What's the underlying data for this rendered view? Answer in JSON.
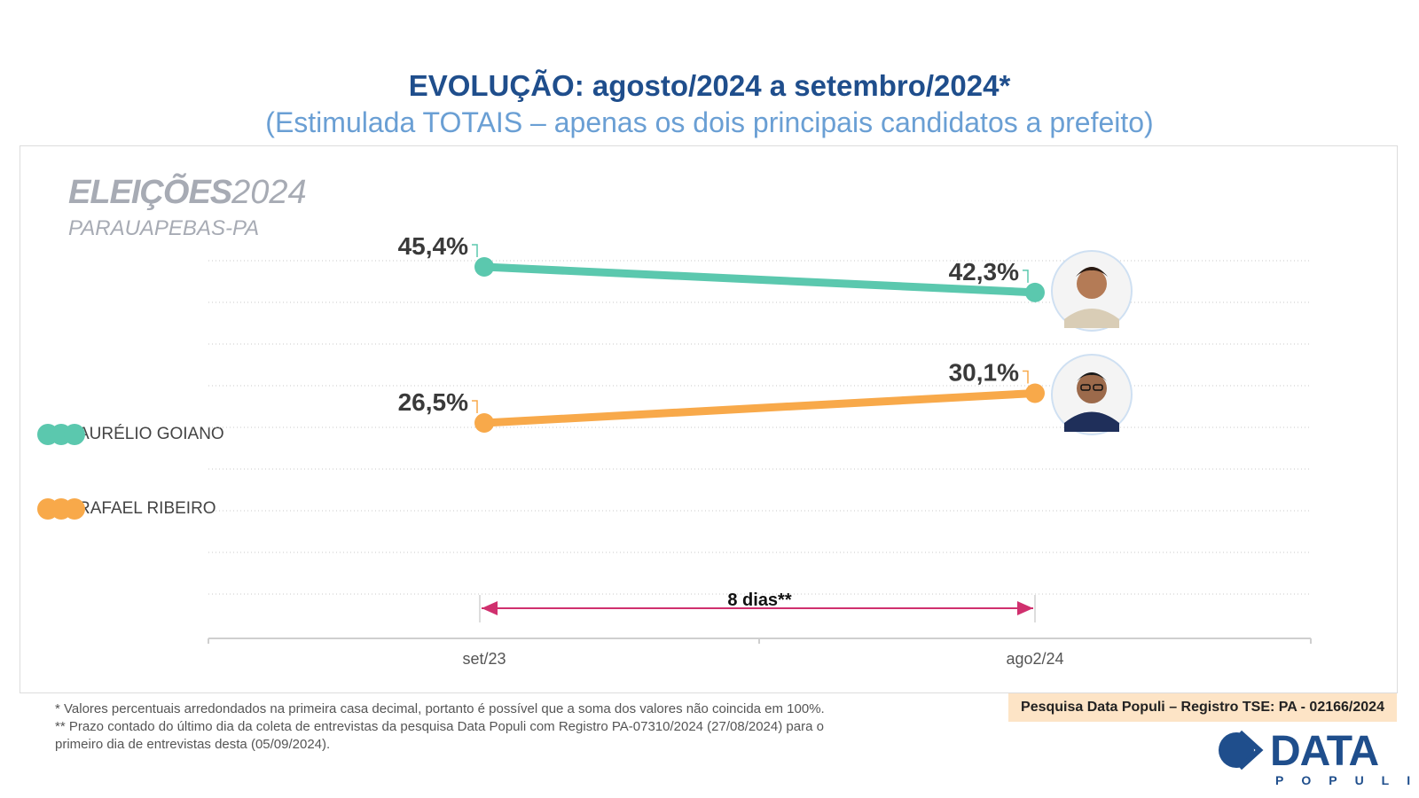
{
  "header": {
    "title": "EVOLUÇÃO: agosto/2024 a setembro/2024*",
    "subtitle": "(Estimulada TOTAIS – apenas os dois principais candidatos a prefeito)"
  },
  "brand": {
    "word": "ELEIÇÕES",
    "year": "2024",
    "place": "PARAUAPEBAS-PA"
  },
  "chart_data": {
    "type": "line",
    "categories": [
      "set/23",
      "ago2/24"
    ],
    "series": [
      {
        "name": "AURÉLIO GOIANO",
        "values": [
          45.4,
          42.3
        ],
        "labels": [
          "45,4%",
          "42,3%"
        ],
        "color": "#5bc8ae"
      },
      {
        "name": "RAFAEL RIBEIRO",
        "values": [
          26.5,
          30.1
        ],
        "labels": [
          "26,5%",
          "30,1%"
        ],
        "color": "#f8a94a"
      }
    ],
    "annotation": {
      "label": "8 dias**",
      "from": "set/23",
      "to": "ago2/24",
      "color": "#d0306e"
    },
    "grid": true,
    "legend": "left"
  },
  "footnotes": [
    "*  Valores percentuais arredondados na primeira casa decimal, portanto é possível que a soma dos valores não coincida em 100%.",
    "** Prazo contado do último dia da coleta de entrevistas da pesquisa Data Populi com Registro PA-07310/2024 (27/08/2024) para o",
    "primeiro dia de entrevistas desta (05/09/2024)."
  ],
  "registration": "Pesquisa Data Populi – Registro TSE: PA - 02166/2024",
  "logo": {
    "word": "DATA",
    "sub": "POPULI"
  },
  "colors": {
    "title": "#1f4e8c",
    "subtitle": "#6a9fd4",
    "grid": "#c9c9c9",
    "avatar_ring": "#cfe0f2"
  }
}
